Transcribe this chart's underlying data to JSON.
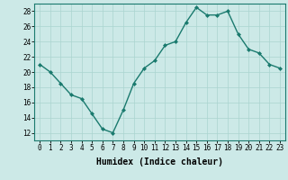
{
  "xlabel": "Humidex (Indice chaleur)",
  "x": [
    0,
    1,
    2,
    3,
    4,
    5,
    6,
    7,
    8,
    9,
    10,
    11,
    12,
    13,
    14,
    15,
    16,
    17,
    18,
    19,
    20,
    21,
    22,
    23
  ],
  "y": [
    21,
    20,
    18.5,
    17,
    16.5,
    14.5,
    12.5,
    12,
    15,
    18.5,
    20.5,
    21.5,
    23.5,
    24,
    26.5,
    28.5,
    27.5,
    27.5,
    28,
    25,
    23,
    22.5,
    21,
    20.5
  ],
  "line_color": "#1a7a6e",
  "marker": "D",
  "marker_size": 2.0,
  "bg_color": "#cce9e7",
  "grid_color": "#aad4d0",
  "ylim": [
    11,
    29
  ],
  "yticks": [
    12,
    14,
    16,
    18,
    20,
    22,
    24,
    26,
    28
  ],
  "xlim": [
    -0.5,
    23.5
  ],
  "xticks": [
    0,
    1,
    2,
    3,
    4,
    5,
    6,
    7,
    8,
    9,
    10,
    11,
    12,
    13,
    14,
    15,
    16,
    17,
    18,
    19,
    20,
    21,
    22,
    23
  ],
  "tick_fontsize": 5.5,
  "label_fontsize": 7.0,
  "line_width": 1.0
}
